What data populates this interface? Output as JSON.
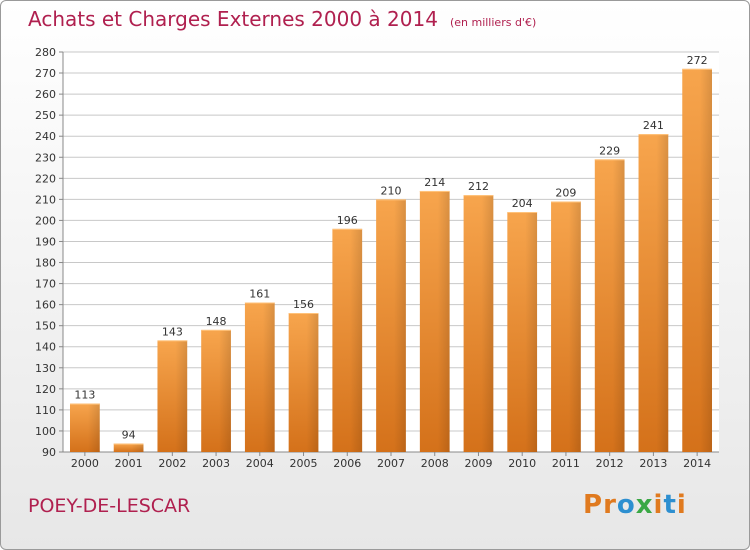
{
  "chart_data": {
    "type": "bar",
    "title": "Achats et Charges Externes 2000 à 2014",
    "subtitle": "(en milliers d'€)",
    "categories": [
      "2000",
      "2001",
      "2002",
      "2003",
      "2004",
      "2005",
      "2006",
      "2007",
      "2008",
      "2009",
      "2010",
      "2011",
      "2012",
      "2013",
      "2014"
    ],
    "values": [
      113,
      94,
      143,
      148,
      161,
      156,
      196,
      210,
      214,
      212,
      204,
      209,
      229,
      241,
      272
    ],
    "ylim": [
      90,
      280
    ],
    "yticks": [
      90,
      100,
      110,
      120,
      130,
      140,
      150,
      160,
      170,
      180,
      190,
      200,
      210,
      220,
      230,
      240,
      250,
      260,
      270,
      280
    ],
    "grid": true,
    "bar_color": "#f0953e",
    "title_color": "#b0204f"
  },
  "footer": {
    "place": "POEY-DE-LESCAR",
    "logo": "Proxiti",
    "logo_colors": [
      "#e07a1f",
      "#e07a1f",
      "#2d8fd0",
      "#3aa845",
      "#e07a1f",
      "#2d8fd0",
      "#e07a1f"
    ]
  }
}
